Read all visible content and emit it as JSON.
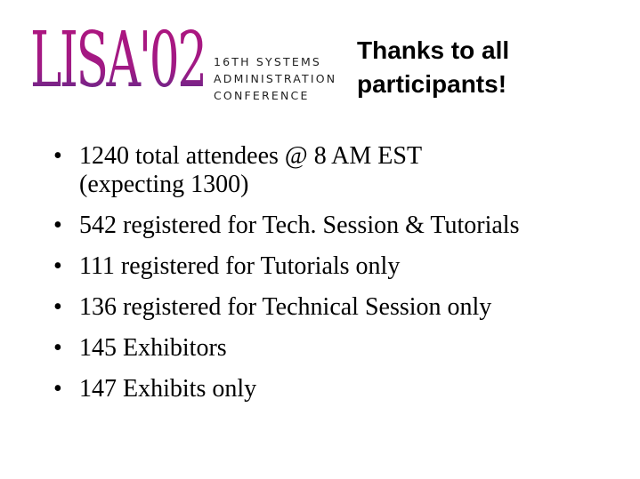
{
  "logo": {
    "text": "LISA'02",
    "subtitle": [
      "16TH SYSTEMS",
      "ADMINISTRATION",
      "CONFERENCE"
    ],
    "colors": [
      "#b0157e",
      "#4a2e8a"
    ]
  },
  "title": [
    "Thanks to all",
    "participants!"
  ],
  "bullets": [
    [
      "1240 total attendees @ 8 AM EST",
      "(expecting 1300)"
    ],
    [
      "542 registered for Tech. Session & Tutorials"
    ],
    [
      "111 registered for Tutorials only"
    ],
    [
      "136 registered for Technical Session only"
    ],
    [
      "145 Exhibitors"
    ],
    [
      "147 Exhibits only"
    ]
  ]
}
